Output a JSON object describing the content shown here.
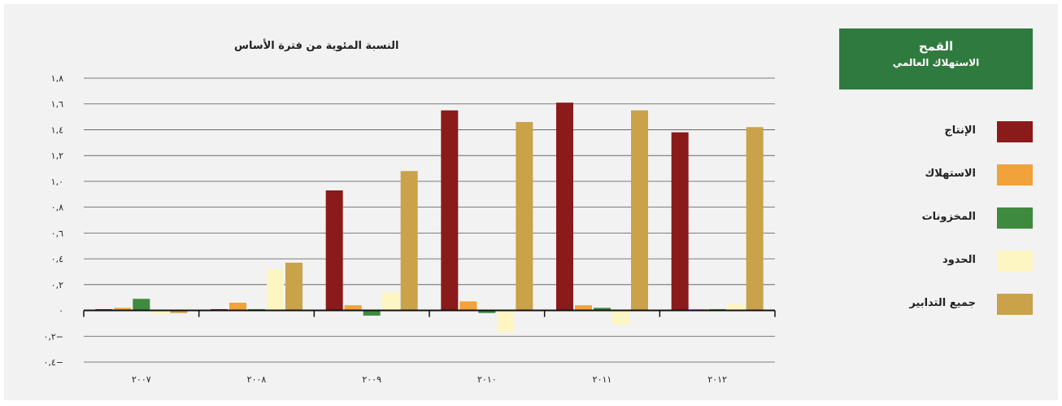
{
  "header": {
    "title": "القمح",
    "subtitle": "الاستهلاك العالمي"
  },
  "chart_data": {
    "type": "bar",
    "ylabel": "النسبة المئوية من فترة الأساس",
    "categories": [
      "٢٠٠٧",
      "٢٠٠٨",
      "٢٠٠٩",
      "٢٠١٠",
      "٢٠١١",
      "٢٠١٢"
    ],
    "ylim": [
      -0.4,
      1.8
    ],
    "yticks": [
      1.8,
      1.6,
      1.4,
      1.2,
      1.0,
      0.8,
      0.6,
      0.4,
      0.2,
      0,
      -0.2,
      -0.4
    ],
    "ytick_labels": [
      "١,٨",
      "١,٦",
      "١,٤",
      "١,٢",
      "١,٠",
      "٠,٨",
      "٠,٦",
      "٠,٤",
      "٠,٢",
      "٠",
      "٠,٢−",
      "٠,٤−"
    ],
    "grid": true,
    "legend_position": "right",
    "series": [
      {
        "name": "الإنتاج",
        "color": "#8b1a1a",
        "values": [
          0.01,
          0.01,
          0.93,
          1.55,
          1.61,
          1.38
        ]
      },
      {
        "name": "الاستهلاك",
        "color": "#f2a23a",
        "values": [
          0.02,
          0.06,
          0.04,
          0.07,
          0.04,
          0.01
        ]
      },
      {
        "name": "المخزونات",
        "color": "#3e8a3e",
        "values": [
          0.09,
          0.01,
          -0.04,
          -0.02,
          0.02,
          0.01
        ]
      },
      {
        "name": "الحدود",
        "color": "#fdf6c3",
        "values": [
          -0.03,
          0.32,
          0.14,
          -0.17,
          -0.11,
          0.05
        ]
      },
      {
        "name": "جميع التدابير",
        "color": "#c9a24a",
        "values": [
          -0.02,
          0.37,
          1.08,
          1.46,
          1.55,
          1.42
        ]
      }
    ]
  }
}
